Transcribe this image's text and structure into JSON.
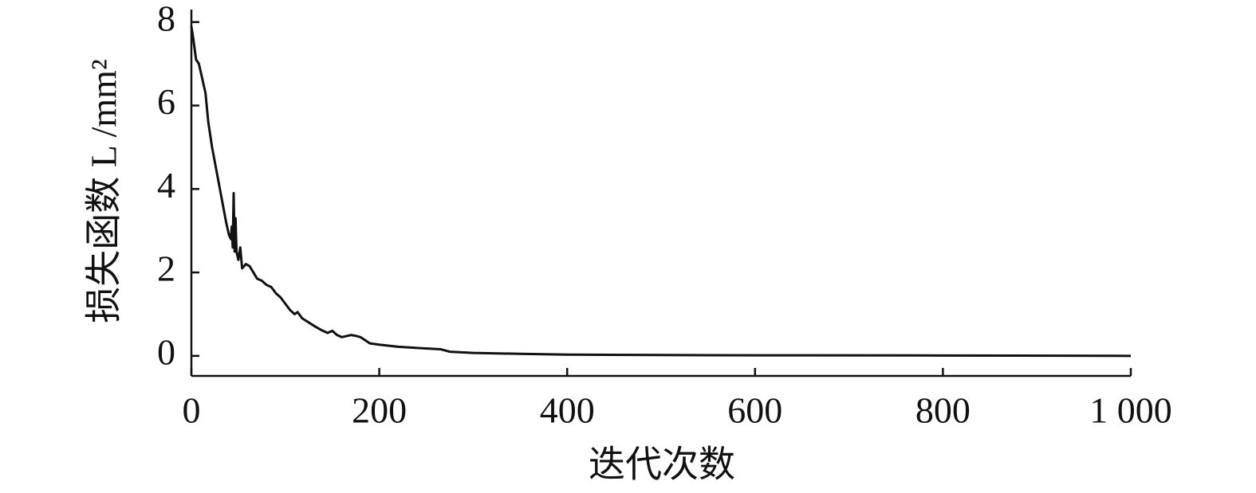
{
  "chart_data": {
    "type": "line",
    "x_label": "迭代次数",
    "y_label": "损失函数 L /mm²",
    "color": "#111111",
    "xlim": [
      0,
      1000
    ],
    "ylim": [
      -0.48,
      8.3
    ],
    "xticks": [
      0,
      200,
      400,
      600,
      800,
      {
        "value": 1000,
        "label": "1 000"
      }
    ],
    "yticks": [
      0,
      2,
      4,
      6,
      8
    ],
    "x": [
      0,
      2,
      5,
      8,
      12,
      15,
      18,
      22,
      27,
      32,
      37,
      40,
      42,
      43,
      44,
      45,
      46,
      47,
      48,
      50,
      52,
      54,
      58,
      62,
      66,
      70,
      75,
      80,
      85,
      90,
      95,
      100,
      105,
      110,
      113,
      118,
      125,
      132,
      140,
      145,
      150,
      155,
      160,
      170,
      175,
      180,
      190,
      200,
      220,
      240,
      265,
      275,
      300,
      350,
      400,
      500,
      600,
      800,
      1000
    ],
    "values": [
      7.9,
      7.6,
      7.1,
      7.0,
      6.6,
      6.3,
      5.6,
      5.0,
      4.4,
      3.8,
      3.2,
      2.9,
      2.8,
      3.1,
      2.6,
      3.9,
      2.5,
      3.3,
      2.5,
      2.3,
      2.6,
      2.1,
      2.2,
      2.15,
      2.0,
      1.85,
      1.8,
      1.7,
      1.65,
      1.5,
      1.4,
      1.25,
      1.1,
      1.0,
      1.05,
      0.9,
      0.8,
      0.7,
      0.6,
      0.55,
      0.6,
      0.5,
      0.45,
      0.5,
      0.48,
      0.45,
      0.3,
      0.27,
      0.22,
      0.19,
      0.16,
      0.1,
      0.07,
      0.05,
      0.03,
      0.02,
      0.015,
      0.01,
      0.0
    ]
  }
}
